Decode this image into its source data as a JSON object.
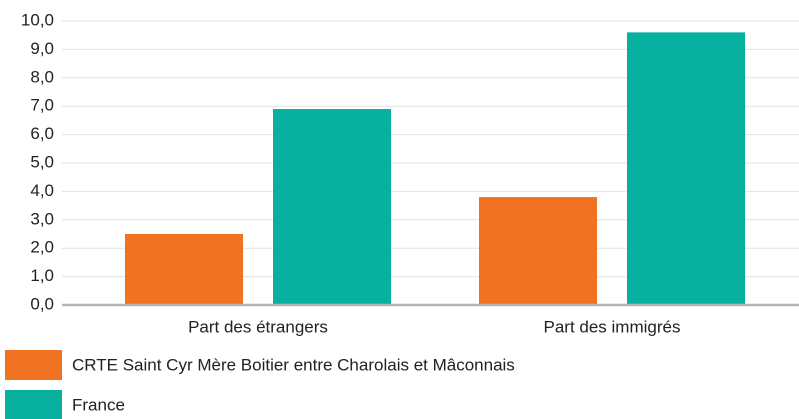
{
  "chart_data": {
    "type": "bar",
    "categories": [
      "Part des étrangers",
      "Part des immigrés"
    ],
    "series": [
      {
        "name": "CRTE Saint Cyr Mère Boitier entre Charolais et Mâconnais",
        "color": "#ef7321",
        "values": [
          2.5,
          3.8
        ]
      },
      {
        "name": "France",
        "color": "#08b09f",
        "values": [
          6.9,
          9.6
        ]
      }
    ],
    "ylim": [
      0,
      10
    ],
    "yticks": [
      {
        "value": 0,
        "label": "0,0"
      },
      {
        "value": 1,
        "label": "1,0"
      },
      {
        "value": 2,
        "label": "2,0"
      },
      {
        "value": 3,
        "label": "3,0"
      },
      {
        "value": 4,
        "label": "4,0"
      },
      {
        "value": 5,
        "label": "5,0"
      },
      {
        "value": 6,
        "label": "6,0"
      },
      {
        "value": 7,
        "label": "7,0"
      },
      {
        "value": 8,
        "label": "8,0"
      },
      {
        "value": 9,
        "label": "9,0"
      },
      {
        "value": 10,
        "label": "10,0"
      }
    ],
    "grid": true
  }
}
